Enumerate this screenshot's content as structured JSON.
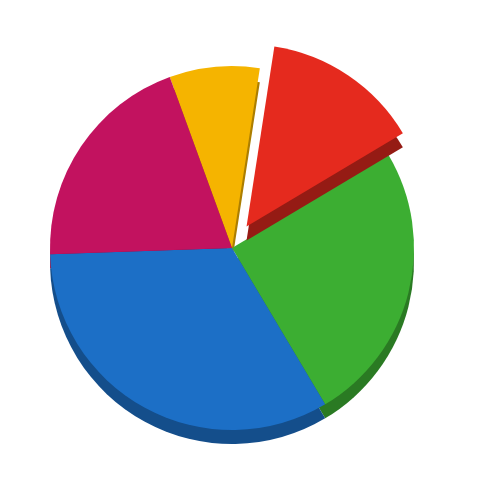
{
  "chart_data": {
    "type": "pie",
    "values": [
      8,
      14,
      25,
      33,
      20
    ],
    "colors": [
      "#f5b400",
      "#e52a1e",
      "#3cae32",
      "#1c6fc6",
      "#c2125f"
    ]
  }
}
